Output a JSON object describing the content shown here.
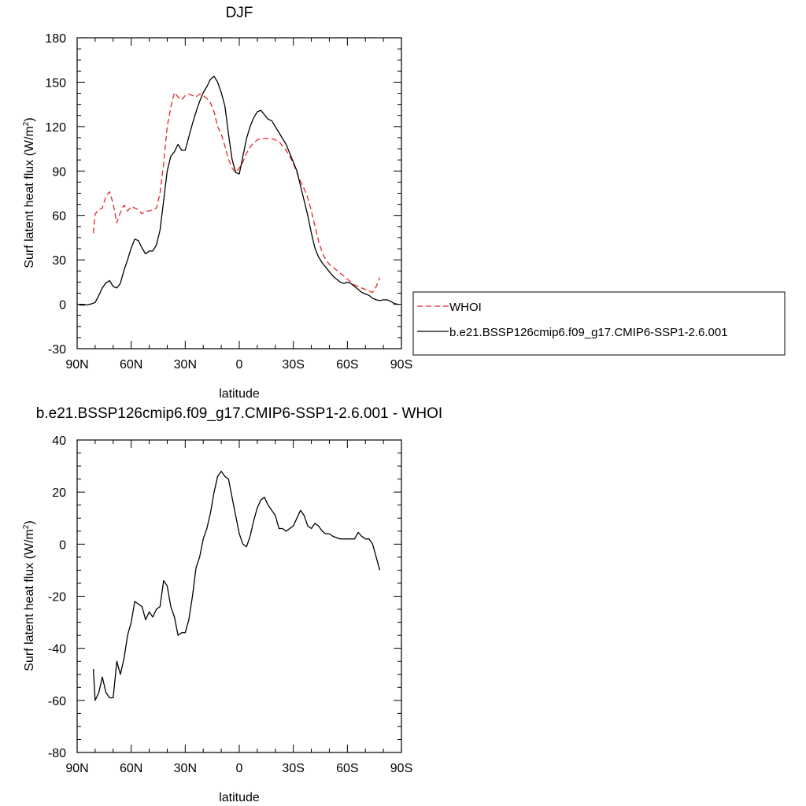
{
  "chart_data": [
    {
      "type": "line",
      "title": "DJF",
      "xlabel": "latitude",
      "ylabel": "Surf latent heat flux (W/m",
      "ylabel_sup": "2",
      "ylabel_end": ")",
      "xlim": [
        90,
        -90
      ],
      "ylim": [
        -30,
        180
      ],
      "xticks": [
        90,
        60,
        30,
        0,
        -30,
        -60,
        -90
      ],
      "xtick_labels": [
        "90N",
        "60N",
        "30N",
        "0",
        "30S",
        "60S",
        "90S"
      ],
      "yticks": [
        -30,
        0,
        30,
        60,
        90,
        120,
        150,
        180
      ],
      "ytick_labels": [
        "-30",
        "0",
        "30",
        "60",
        "90",
        "120",
        "150",
        "180"
      ],
      "legend": "right",
      "series": [
        {
          "name": "WHOI",
          "color": "#e8262a",
          "dash": "dashed",
          "x": [
            81,
            80,
            78,
            76,
            74,
            72,
            70,
            68,
            66,
            64,
            62,
            60,
            58,
            56,
            54,
            52,
            50,
            48,
            46,
            44,
            42,
            40,
            38,
            36,
            34,
            32,
            30,
            28,
            26,
            24,
            22,
            20,
            18,
            16,
            14,
            12,
            10,
            8,
            6,
            4,
            2,
            0,
            -2,
            -4,
            -6,
            -8,
            -10,
            -12,
            -14,
            -16,
            -18,
            -20,
            -22,
            -24,
            -26,
            -28,
            -30,
            -32,
            -34,
            -36,
            -38,
            -40,
            -42,
            -44,
            -46,
            -48,
            -50,
            -52,
            -54,
            -56,
            -58,
            -60,
            -62,
            -64,
            -66,
            -68,
            -70,
            -72,
            -74,
            -76,
            -78
          ],
          "y": [
            48,
            61,
            64,
            65,
            73,
            76,
            68,
            55,
            62,
            67,
            63,
            66,
            65,
            64,
            61,
            63,
            63,
            64,
            65,
            75,
            95,
            120,
            133,
            143,
            140,
            138,
            141,
            142,
            141,
            140,
            142,
            141,
            139,
            136,
            130,
            120,
            115,
            107,
            98,
            92,
            89,
            92,
            96,
            102,
            106,
            109,
            111,
            112,
            112,
            112,
            112,
            111,
            110,
            107,
            104,
            100,
            95,
            89,
            83,
            78,
            72,
            63,
            53,
            43,
            35,
            30,
            27,
            25,
            23,
            21,
            19,
            17,
            15,
            13,
            12,
            11,
            10,
            9,
            8,
            12,
            18
          ]
        },
        {
          "name": "b.e21.BSSP126cmip6.f09_g17.CMIP6-SSP1-2.6.001",
          "color": "#000000",
          "dash": "solid",
          "x": [
            89,
            88,
            86,
            84,
            82,
            80,
            78,
            76,
            74,
            72,
            70,
            68,
            66,
            64,
            62,
            60,
            58,
            56,
            54,
            52,
            50,
            48,
            46,
            44,
            42,
            40,
            38,
            36,
            34,
            32,
            30,
            28,
            26,
            24,
            22,
            20,
            18,
            16,
            14,
            12,
            10,
            8,
            6,
            4,
            2,
            0,
            -2,
            -4,
            -6,
            -8,
            -10,
            -12,
            -14,
            -16,
            -18,
            -20,
            -22,
            -24,
            -26,
            -28,
            -30,
            -32,
            -34,
            -36,
            -38,
            -40,
            -42,
            -44,
            -46,
            -48,
            -50,
            -52,
            -54,
            -56,
            -58,
            -60,
            -62,
            -64,
            -66,
            -68,
            -70,
            -72,
            -74,
            -76,
            -78,
            -80,
            -82,
            -84,
            -86,
            -88,
            -89
          ],
          "y": [
            -0.5,
            -0.5,
            -0.5,
            -0.3,
            0.3,
            1.2,
            6,
            11,
            14.5,
            16,
            12,
            11,
            14,
            23,
            30,
            38,
            44,
            43,
            38,
            34,
            36,
            36,
            40,
            50,
            70,
            90,
            100,
            103,
            108,
            104,
            104,
            113,
            122,
            130,
            137,
            143,
            147,
            152,
            154,
            150,
            143,
            134,
            115,
            98,
            89,
            88,
            100,
            112,
            120,
            126,
            130,
            131,
            128,
            125,
            124,
            120,
            116,
            112,
            108,
            102,
            96,
            90,
            80,
            70,
            60,
            48,
            38,
            32,
            28,
            25,
            22,
            19,
            17,
            15,
            14,
            15,
            14,
            12,
            10,
            8,
            7,
            6,
            4,
            3,
            2.5,
            3,
            3,
            2,
            0.5,
            0,
            0
          ]
        }
      ]
    },
    {
      "type": "line",
      "title": "b.e21.BSSP126cmip6.f09_g17.CMIP6-SSP1-2.6.001 - WHOI",
      "xlabel": "latitude",
      "ylabel": "Surf latent heat flux (W/m",
      "ylabel_sup": "2",
      "ylabel_end": ")",
      "xlim": [
        90,
        -90
      ],
      "ylim": [
        -80,
        40
      ],
      "xticks": [
        90,
        60,
        30,
        0,
        -30,
        -60,
        -90
      ],
      "xtick_labels": [
        "90N",
        "60N",
        "30N",
        "0",
        "30S",
        "60S",
        "90S"
      ],
      "yticks": [
        -80,
        -60,
        -40,
        -20,
        0,
        20,
        40
      ],
      "ytick_labels": [
        "-80",
        "-60",
        "-40",
        "-20",
        "0",
        "20",
        "40"
      ],
      "series": [
        {
          "color": "#000000",
          "dash": "solid",
          "x": [
            81,
            80,
            78,
            76,
            74,
            72,
            70,
            68,
            66,
            64,
            62,
            60,
            58,
            56,
            54,
            52,
            50,
            48,
            46,
            44,
            42,
            40,
            38,
            36,
            34,
            32,
            30,
            28,
            26,
            24,
            22,
            20,
            18,
            16,
            14,
            12,
            10,
            8,
            6,
            4,
            2,
            0,
            -2,
            -4,
            -6,
            -8,
            -10,
            -12,
            -14,
            -16,
            -18,
            -20,
            -22,
            -24,
            -26,
            -28,
            -30,
            -32,
            -34,
            -36,
            -38,
            -40,
            -42,
            -44,
            -46,
            -48,
            -50,
            -52,
            -54,
            -56,
            -58,
            -60,
            -62,
            -64,
            -66,
            -68,
            -70,
            -72,
            -74,
            -76,
            -78
          ],
          "y": [
            -48,
            -60,
            -57,
            -51,
            -57,
            -59,
            -59,
            -45,
            -50,
            -44,
            -35,
            -30,
            -22,
            -23,
            -24,
            -29,
            -26,
            -28,
            -25,
            -24,
            -14,
            -16,
            -24,
            -28,
            -35,
            -34,
            -34,
            -29,
            -20,
            -9,
            -5,
            2,
            6,
            12,
            20,
            26,
            28,
            26,
            25,
            18,
            11,
            4,
            0,
            -1,
            3,
            9,
            14,
            17,
            18,
            15,
            13,
            11,
            6,
            6,
            5,
            6,
            7,
            10,
            13,
            11,
            7,
            6,
            8,
            7,
            5,
            4,
            4,
            3,
            2.5,
            2,
            2,
            2,
            2,
            2,
            4.5,
            3,
            2,
            2,
            0,
            -5,
            -10
          ]
        }
      ]
    }
  ]
}
